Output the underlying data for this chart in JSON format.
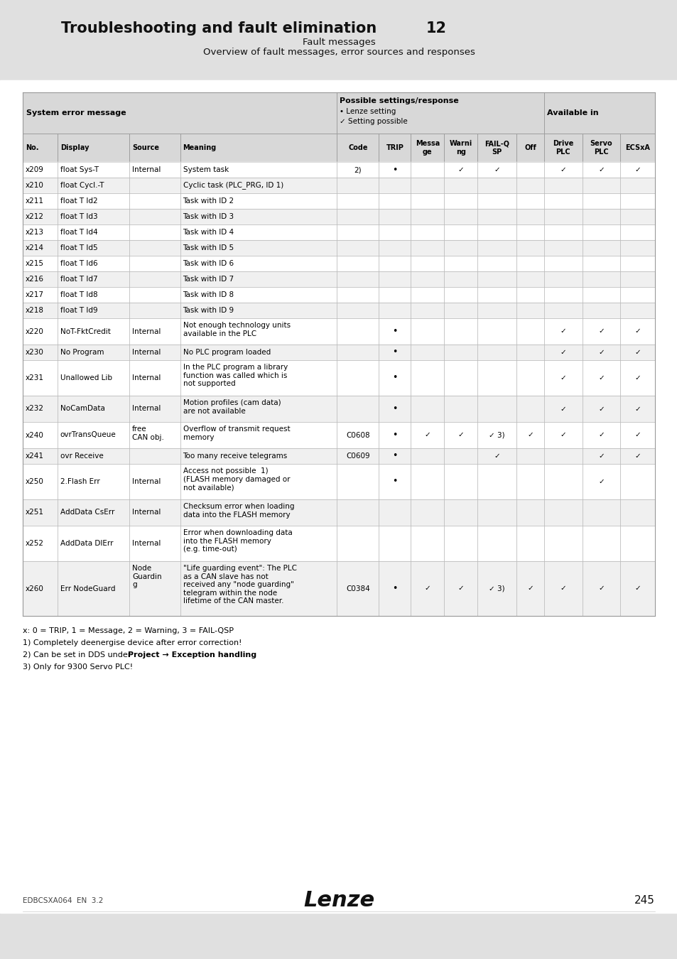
{
  "title": "Troubleshooting and fault elimination",
  "chapter": "12",
  "subtitle1": "Fault messages",
  "subtitle2": "Overview of fault messages, error sources and responses",
  "bg_color": "#e0e0e0",
  "white": "#ffffff",
  "header_bg": "#d0d0d0",
  "footer_text": "EDBCSXA064  EN  3.2",
  "page_num": "245",
  "lenze_text": "Lenze",
  "col_header_group1": "System error message",
  "col_header_group3": "Available in",
  "col_headers": [
    "No.",
    "Display",
    "Source",
    "Meaning",
    "Code",
    "TRIP",
    "Messa\nge",
    "Warni\nng",
    "FAIL-Q\nSP",
    "Off",
    "Drive\nPLC",
    "Servo\nPLC",
    "ECSxA"
  ],
  "rows": [
    {
      "no": "x209",
      "display": "float Sys-T",
      "source": "Internal",
      "meaning": "System task",
      "code": "2)",
      "trip": "•",
      "message": "",
      "warning": "✓",
      "failqsp": "✓",
      "off": "",
      "drive_plc": "✓",
      "servo_plc": "✓",
      "ecsxa": "✓"
    },
    {
      "no": "x210",
      "display": "float Cycl.-T",
      "source": "",
      "meaning": "Cyclic task (PLC_PRG, ID 1)",
      "code": "",
      "trip": "",
      "message": "",
      "warning": "",
      "failqsp": "",
      "off": "",
      "drive_plc": "",
      "servo_plc": "",
      "ecsxa": ""
    },
    {
      "no": "x211",
      "display": "float T Id2",
      "source": "",
      "meaning": "Task with ID 2",
      "code": "",
      "trip": "",
      "message": "",
      "warning": "",
      "failqsp": "",
      "off": "",
      "drive_plc": "",
      "servo_plc": "",
      "ecsxa": ""
    },
    {
      "no": "x212",
      "display": "float T Id3",
      "source": "",
      "meaning": "Task with ID 3",
      "code": "",
      "trip": "",
      "message": "",
      "warning": "",
      "failqsp": "",
      "off": "",
      "drive_plc": "",
      "servo_plc": "",
      "ecsxa": ""
    },
    {
      "no": "x213",
      "display": "float T Id4",
      "source": "",
      "meaning": "Task with ID 4",
      "code": "",
      "trip": "",
      "message": "",
      "warning": "",
      "failqsp": "",
      "off": "",
      "drive_plc": "",
      "servo_plc": "",
      "ecsxa": ""
    },
    {
      "no": "x214",
      "display": "float T Id5",
      "source": "",
      "meaning": "Task with ID 5",
      "code": "",
      "trip": "",
      "message": "",
      "warning": "",
      "failqsp": "",
      "off": "",
      "drive_plc": "",
      "servo_plc": "",
      "ecsxa": ""
    },
    {
      "no": "x215",
      "display": "float T Id6",
      "source": "",
      "meaning": "Task with ID 6",
      "code": "",
      "trip": "",
      "message": "",
      "warning": "",
      "failqsp": "",
      "off": "",
      "drive_plc": "",
      "servo_plc": "",
      "ecsxa": ""
    },
    {
      "no": "x216",
      "display": "float T Id7",
      "source": "",
      "meaning": "Task with ID 7",
      "code": "",
      "trip": "",
      "message": "",
      "warning": "",
      "failqsp": "",
      "off": "",
      "drive_plc": "",
      "servo_plc": "",
      "ecsxa": ""
    },
    {
      "no": "x217",
      "display": "float T Id8",
      "source": "",
      "meaning": "Task with ID 8",
      "code": "",
      "trip": "",
      "message": "",
      "warning": "",
      "failqsp": "",
      "off": "",
      "drive_plc": "",
      "servo_plc": "",
      "ecsxa": ""
    },
    {
      "no": "x218",
      "display": "float T Id9",
      "source": "",
      "meaning": "Task with ID 9",
      "code": "",
      "trip": "",
      "message": "",
      "warning": "",
      "failqsp": "",
      "off": "",
      "drive_plc": "",
      "servo_plc": "",
      "ecsxa": ""
    },
    {
      "no": "x220",
      "display": "NoT-FktCredit",
      "source": "Internal",
      "meaning": "Not enough technology units\navailable in the PLC",
      "code": "",
      "trip": "•",
      "message": "",
      "warning": "",
      "failqsp": "",
      "off": "",
      "drive_plc": "✓",
      "servo_plc": "✓",
      "ecsxa": "✓"
    },
    {
      "no": "x230",
      "display": "No Program",
      "source": "Internal",
      "meaning": "No PLC program loaded",
      "code": "",
      "trip": "•",
      "message": "",
      "warning": "",
      "failqsp": "",
      "off": "",
      "drive_plc": "✓",
      "servo_plc": "✓",
      "ecsxa": "✓"
    },
    {
      "no": "x231",
      "display": "Unallowed Lib",
      "source": "Internal",
      "meaning": "In the PLC program a library\nfunction was called which is\nnot supported",
      "code": "",
      "trip": "•",
      "message": "",
      "warning": "",
      "failqsp": "",
      "off": "",
      "drive_plc": "✓",
      "servo_plc": "✓",
      "ecsxa": "✓"
    },
    {
      "no": "x232",
      "display": "NoCamData",
      "source": "Internal",
      "meaning": "Motion profiles (cam data)\nare not available",
      "code": "",
      "trip": "•",
      "message": "",
      "warning": "",
      "failqsp": "",
      "off": "",
      "drive_plc": "✓",
      "servo_plc": "✓",
      "ecsxa": "✓"
    },
    {
      "no": "x240",
      "display": "ovrTransQueue",
      "source": "free\nCAN obj.",
      "meaning": "Overflow of transmit request\nmemory",
      "code": "C0608",
      "trip": "•",
      "message": "✓",
      "warning": "✓",
      "failqsp": "✓ 3)",
      "off": "✓",
      "drive_plc": "✓",
      "servo_plc": "✓",
      "ecsxa": "✓"
    },
    {
      "no": "x241",
      "display": "ovr Receive",
      "source": "",
      "meaning": "Too many receive telegrams",
      "code": "C0609",
      "trip": "•",
      "message": "",
      "warning": "",
      "failqsp": "✓",
      "off": "",
      "drive_plc": "",
      "servo_plc": "✓",
      "ecsxa": "✓"
    },
    {
      "no": "x250",
      "display": "2.Flash Err",
      "source": "Internal",
      "meaning": "Access not possible  1)\n(FLASH memory damaged or\nnot available)",
      "code": "",
      "trip": "•",
      "message": "",
      "warning": "",
      "failqsp": "",
      "off": "",
      "drive_plc": "",
      "servo_plc": "✓",
      "ecsxa": ""
    },
    {
      "no": "x251",
      "display": "AddData CsErr",
      "source": "Internal",
      "meaning": "Checksum error when loading\ndata into the FLASH memory",
      "code": "",
      "trip": "",
      "message": "",
      "warning": "",
      "failqsp": "",
      "off": "",
      "drive_plc": "",
      "servo_plc": "",
      "ecsxa": ""
    },
    {
      "no": "x252",
      "display": "AddData DlErr",
      "source": "Internal",
      "meaning": "Error when downloading data\ninto the FLASH memory\n(e.g. time-out)",
      "code": "",
      "trip": "",
      "message": "",
      "warning": "",
      "failqsp": "",
      "off": "",
      "drive_plc": "",
      "servo_plc": "",
      "ecsxa": ""
    },
    {
      "no": "x260",
      "display": "Err NodeGuard",
      "source": "Node\nGuardin\ng",
      "meaning": "\"Life guarding event\": The PLC\nas a CAN slave has not\nreceived any \"node guarding\"\ntelegram within the node\nlifetime of the CAN master.",
      "code": "C0384",
      "trip": "•",
      "message": "✓",
      "warning": "✓",
      "failqsp": "✓ 3)",
      "off": "✓",
      "drive_plc": "✓",
      "servo_plc": "✓",
      "ecsxa": "✓"
    }
  ]
}
